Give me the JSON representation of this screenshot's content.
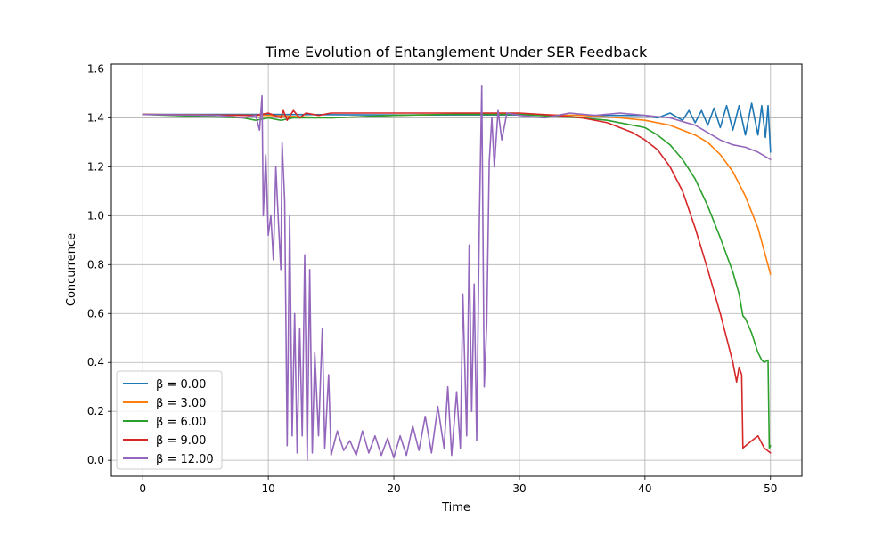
{
  "chart_data": {
    "type": "line",
    "title": "Time Evolution of Entanglement Under SER Feedback",
    "xlabel": "Time",
    "ylabel": "Concurrence",
    "xlim": [
      -2.5,
      52.5
    ],
    "ylim": [
      -0.065,
      1.62
    ],
    "xticks": [
      0,
      10,
      20,
      30,
      40,
      50
    ],
    "yticks": [
      0.0,
      0.2,
      0.4,
      0.6,
      0.8,
      1.0,
      1.2,
      1.4,
      1.6
    ],
    "xtick_labels": [
      "0",
      "10",
      "20",
      "30",
      "40",
      "50"
    ],
    "ytick_labels": [
      "0.0",
      "0.2",
      "0.4",
      "0.6",
      "0.8",
      "1.0",
      "1.2",
      "1.4",
      "1.6"
    ],
    "grid": true,
    "legend_position": "lower-left",
    "series": [
      {
        "name": "β = 0.00",
        "color": "#1f77b4",
        "points": [
          [
            0,
            1.414
          ],
          [
            10,
            1.414
          ],
          [
            20,
            1.412
          ],
          [
            30,
            1.412
          ],
          [
            35,
            1.41
          ],
          [
            38,
            1.41
          ],
          [
            40,
            1.41
          ],
          [
            41,
            1.4
          ],
          [
            42,
            1.42
          ],
          [
            43,
            1.39
          ],
          [
            43.5,
            1.43
          ],
          [
            44,
            1.38
          ],
          [
            44.5,
            1.43
          ],
          [
            45,
            1.37
          ],
          [
            45.5,
            1.44
          ],
          [
            46,
            1.36
          ],
          [
            46.5,
            1.45
          ],
          [
            47,
            1.35
          ],
          [
            47.5,
            1.45
          ],
          [
            48,
            1.33
          ],
          [
            48.5,
            1.46
          ],
          [
            49,
            1.33
          ],
          [
            49.3,
            1.45
          ],
          [
            49.6,
            1.32
          ],
          [
            49.8,
            1.45
          ],
          [
            50,
            1.26
          ]
        ]
      },
      {
        "name": "β = 3.00",
        "color": "#ff7f0e",
        "points": [
          [
            0,
            1.414
          ],
          [
            10,
            1.41
          ],
          [
            15,
            1.4
          ],
          [
            20,
            1.41
          ],
          [
            25,
            1.415
          ],
          [
            30,
            1.414
          ],
          [
            35,
            1.41
          ],
          [
            38,
            1.4
          ],
          [
            40,
            1.39
          ],
          [
            42,
            1.37
          ],
          [
            44,
            1.33
          ],
          [
            45,
            1.3
          ],
          [
            46,
            1.25
          ],
          [
            47,
            1.18
          ],
          [
            48,
            1.08
          ],
          [
            49,
            0.95
          ],
          [
            50,
            0.76
          ]
        ]
      },
      {
        "name": "β = 6.00",
        "color": "#2ca02c",
        "points": [
          [
            0,
            1.414
          ],
          [
            8,
            1.4
          ],
          [
            9,
            1.39
          ],
          [
            10,
            1.4
          ],
          [
            11,
            1.39
          ],
          [
            12,
            1.4
          ],
          [
            15,
            1.4
          ],
          [
            20,
            1.41
          ],
          [
            25,
            1.415
          ],
          [
            30,
            1.414
          ],
          [
            35,
            1.4
          ],
          [
            37,
            1.39
          ],
          [
            39,
            1.37
          ],
          [
            40,
            1.36
          ],
          [
            41,
            1.33
          ],
          [
            42,
            1.29
          ],
          [
            43,
            1.23
          ],
          [
            44,
            1.15
          ],
          [
            45,
            1.04
          ],
          [
            46,
            0.91
          ],
          [
            47,
            0.77
          ],
          [
            47.5,
            0.68
          ],
          [
            47.8,
            0.59
          ],
          [
            48,
            0.58
          ],
          [
            48.5,
            0.52
          ],
          [
            49,
            0.44
          ],
          [
            49.3,
            0.41
          ],
          [
            49.5,
            0.4
          ],
          [
            49.8,
            0.41
          ],
          [
            49.9,
            0.05
          ],
          [
            50,
            0.06
          ]
        ]
      },
      {
        "name": "β = 9.00",
        "color": "#d62728",
        "points": [
          [
            0,
            1.414
          ],
          [
            9,
            1.41
          ],
          [
            10,
            1.42
          ],
          [
            11,
            1.4
          ],
          [
            11.2,
            1.43
          ],
          [
            11.5,
            1.39
          ],
          [
            12,
            1.43
          ],
          [
            12.5,
            1.4
          ],
          [
            13,
            1.42
          ],
          [
            14,
            1.41
          ],
          [
            15,
            1.42
          ],
          [
            20,
            1.42
          ],
          [
            25,
            1.42
          ],
          [
            30,
            1.42
          ],
          [
            33,
            1.41
          ],
          [
            35,
            1.4
          ],
          [
            37,
            1.38
          ],
          [
            39,
            1.34
          ],
          [
            40,
            1.31
          ],
          [
            41,
            1.27
          ],
          [
            42,
            1.2
          ],
          [
            43,
            1.1
          ],
          [
            44,
            0.95
          ],
          [
            45,
            0.78
          ],
          [
            46,
            0.6
          ],
          [
            46.5,
            0.5
          ],
          [
            47,
            0.4
          ],
          [
            47.3,
            0.32
          ],
          [
            47.5,
            0.38
          ],
          [
            47.7,
            0.35
          ],
          [
            47.8,
            0.05
          ],
          [
            48.5,
            0.08
          ],
          [
            49,
            0.1
          ],
          [
            49.5,
            0.05
          ],
          [
            50,
            0.03
          ]
        ]
      },
      {
        "name": "β = 12.00",
        "color": "#9467bd",
        "points": [
          [
            0,
            1.414
          ],
          [
            6,
            1.41
          ],
          [
            8,
            1.4
          ],
          [
            9,
            1.41
          ],
          [
            9.3,
            1.35
          ],
          [
            9.5,
            1.49
          ],
          [
            9.6,
            1.0
          ],
          [
            9.8,
            1.25
          ],
          [
            10,
            0.92
          ],
          [
            10.2,
            1.0
          ],
          [
            10.4,
            0.82
          ],
          [
            10.6,
            1.2
          ],
          [
            10.8,
            0.98
          ],
          [
            11,
            0.78
          ],
          [
            11.1,
            1.3
          ],
          [
            11.3,
            1.06
          ],
          [
            11.5,
            0.06
          ],
          [
            11.7,
            1.0
          ],
          [
            11.9,
            0.1
          ],
          [
            12.1,
            0.6
          ],
          [
            12.3,
            0.03
          ],
          [
            12.5,
            0.54
          ],
          [
            12.7,
            0.1
          ],
          [
            12.9,
            0.84
          ],
          [
            13.1,
            0.0
          ],
          [
            13.3,
            0.78
          ],
          [
            13.5,
            0.03
          ],
          [
            13.7,
            0.44
          ],
          [
            14,
            0.1
          ],
          [
            14.3,
            0.54
          ],
          [
            14.5,
            0.05
          ],
          [
            14.8,
            0.35
          ],
          [
            15,
            0.02
          ],
          [
            15.5,
            0.12
          ],
          [
            16,
            0.04
          ],
          [
            16.5,
            0.08
          ],
          [
            17,
            0.02
          ],
          [
            17.5,
            0.12
          ],
          [
            18,
            0.03
          ],
          [
            18.5,
            0.1
          ],
          [
            19,
            0.02
          ],
          [
            19.5,
            0.09
          ],
          [
            20,
            0.01
          ],
          [
            20.5,
            0.1
          ],
          [
            21,
            0.02
          ],
          [
            21.5,
            0.14
          ],
          [
            22,
            0.04
          ],
          [
            22.5,
            0.18
          ],
          [
            23,
            0.03
          ],
          [
            23.5,
            0.22
          ],
          [
            24,
            0.05
          ],
          [
            24.3,
            0.3
          ],
          [
            24.6,
            0.02
          ],
          [
            25,
            0.28
          ],
          [
            25.3,
            0.05
          ],
          [
            25.5,
            0.68
          ],
          [
            25.8,
            0.1
          ],
          [
            26.0,
            0.88
          ],
          [
            26.2,
            0.2
          ],
          [
            26.4,
            0.72
          ],
          [
            26.6,
            0.08
          ],
          [
            26.8,
            0.95
          ],
          [
            27.0,
            1.53
          ],
          [
            27.2,
            0.3
          ],
          [
            27.4,
            0.56
          ],
          [
            27.6,
            1.22
          ],
          [
            27.8,
            1.4
          ],
          [
            28,
            1.2
          ],
          [
            28.3,
            1.43
          ],
          [
            28.6,
            1.31
          ],
          [
            29,
            1.42
          ],
          [
            30,
            1.41
          ],
          [
            32,
            1.4
          ],
          [
            34,
            1.42
          ],
          [
            36,
            1.41
          ],
          [
            38,
            1.42
          ],
          [
            40,
            1.41
          ],
          [
            42,
            1.4
          ],
          [
            44,
            1.37
          ],
          [
            45,
            1.34
          ],
          [
            46,
            1.31
          ],
          [
            47,
            1.29
          ],
          [
            48,
            1.28
          ],
          [
            49,
            1.26
          ],
          [
            50,
            1.23
          ]
        ]
      }
    ]
  }
}
